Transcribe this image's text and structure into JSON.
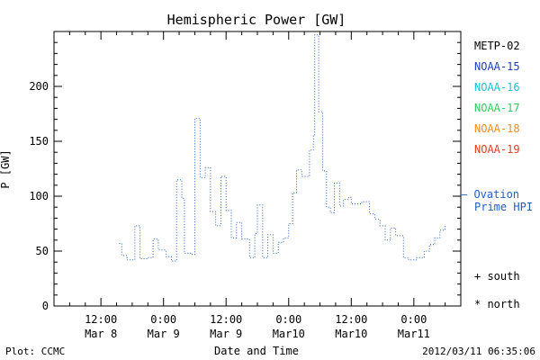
{
  "chart_data": {
    "type": "line",
    "title": "Hemispheric Power [GW]",
    "ylabel": "P [GW]",
    "xlabel": "Date and Time",
    "ylim": [
      0,
      250
    ],
    "xlim": [
      "2012-03-08 03:00",
      "2012-03-11 09:00"
    ],
    "grid": false,
    "y_ticks": [
      0,
      50,
      100,
      150,
      200
    ],
    "x_ticks": [
      {
        "at": "2012-03-08 12:00",
        "line1": "12:00",
        "line2": "Mar 8"
      },
      {
        "at": "2012-03-09 00:00",
        "line1": "0:00",
        "line2": "Mar 9"
      },
      {
        "at": "2012-03-09 12:00",
        "line1": "12:00",
        "line2": "Mar 9"
      },
      {
        "at": "2012-03-10 00:00",
        "line1": "0:00",
        "line2": "Mar10"
      },
      {
        "at": "2012-03-10 12:00",
        "line1": "12:00",
        "line2": "Mar10"
      },
      {
        "at": "2012-03-11 00:00",
        "line1": "0:00",
        "line2": "Mar11"
      }
    ],
    "series": [
      {
        "name": "Ovation Prime HPI",
        "color": "#1f5fbf",
        "style": "dotted-step",
        "points": [
          [
            "2012-03-08 15:30",
            57
          ],
          [
            "2012-03-08 16:00",
            46
          ],
          [
            "2012-03-08 17:00",
            42
          ],
          [
            "2012-03-08 18:30",
            73
          ],
          [
            "2012-03-08 19:30",
            43
          ],
          [
            "2012-03-08 21:00",
            44
          ],
          [
            "2012-03-08 22:00",
            61
          ],
          [
            "2012-03-08 23:00",
            51
          ],
          [
            "2012-03-09 00:30",
            45
          ],
          [
            "2012-03-09 01:30",
            41
          ],
          [
            "2012-03-09 02:30",
            115
          ],
          [
            "2012-03-09 03:30",
            98
          ],
          [
            "2012-03-09 04:00",
            48
          ],
          [
            "2012-03-09 05:30",
            47
          ],
          [
            "2012-03-09 06:00",
            171
          ],
          [
            "2012-03-09 07:00",
            117
          ],
          [
            "2012-03-09 08:00",
            126
          ],
          [
            "2012-03-09 09:00",
            86
          ],
          [
            "2012-03-09 10:00",
            73
          ],
          [
            "2012-03-09 11:00",
            118
          ],
          [
            "2012-03-09 12:00",
            87
          ],
          [
            "2012-03-09 13:00",
            62
          ],
          [
            "2012-03-09 14:00",
            76
          ],
          [
            "2012-03-09 15:00",
            61
          ],
          [
            "2012-03-09 16:30",
            44
          ],
          [
            "2012-03-09 17:30",
            66
          ],
          [
            "2012-03-09 18:00",
            92
          ],
          [
            "2012-03-09 19:00",
            44
          ],
          [
            "2012-03-09 20:00",
            65
          ],
          [
            "2012-03-09 21:00",
            48
          ],
          [
            "2012-03-09 22:00",
            58
          ],
          [
            "2012-03-09 23:00",
            62
          ],
          [
            "2012-03-10 00:00",
            75
          ],
          [
            "2012-03-10 00:45",
            103
          ],
          [
            "2012-03-10 01:30",
            124
          ],
          [
            "2012-03-10 02:30",
            118
          ],
          [
            "2012-03-10 04:00",
            142
          ],
          [
            "2012-03-10 04:45",
            155
          ],
          [
            "2012-03-10 05:00",
            247
          ],
          [
            "2012-03-10 05:45",
            177
          ],
          [
            "2012-03-10 06:30",
            123
          ],
          [
            "2012-03-10 07:15",
            90
          ],
          [
            "2012-03-10 08:00",
            85
          ],
          [
            "2012-03-10 08:45",
            112
          ],
          [
            "2012-03-10 09:45",
            91
          ],
          [
            "2012-03-10 10:30",
            97
          ],
          [
            "2012-03-10 11:30",
            99
          ],
          [
            "2012-03-10 12:00",
            93
          ],
          [
            "2012-03-10 14:00",
            95
          ],
          [
            "2012-03-10 15:30",
            84
          ],
          [
            "2012-03-10 16:30",
            79
          ],
          [
            "2012-03-10 17:30",
            73
          ],
          [
            "2012-03-10 18:30",
            60
          ],
          [
            "2012-03-10 19:30",
            71
          ],
          [
            "2012-03-10 20:30",
            64
          ],
          [
            "2012-03-10 22:00",
            44
          ],
          [
            "2012-03-10 23:00",
            42
          ],
          [
            "2012-03-11 00:30",
            44
          ],
          [
            "2012-03-11 02:00",
            50
          ],
          [
            "2012-03-11 03:00",
            56
          ],
          [
            "2012-03-11 04:00",
            62
          ],
          [
            "2012-03-11 05:00",
            69
          ],
          [
            "2012-03-11 06:00",
            73
          ]
        ]
      }
    ],
    "legend": {
      "satellites": [
        {
          "label": "METP-02",
          "color": "#000000"
        },
        {
          "label": "NOAA-15",
          "color": "#1f3fbf"
        },
        {
          "label": "NOAA-16",
          "color": "#1fbfd9"
        },
        {
          "label": "NOAA-17",
          "color": "#2fcf5f"
        },
        {
          "label": "NOAA-18",
          "color": "#ef8f1f"
        },
        {
          "label": "NOAA-19",
          "color": "#df3f1f"
        }
      ],
      "model_line1": "— Ovation",
      "model_line2": "Prime HPI",
      "model_color": "#1f5fbf",
      "south": "+ south",
      "north": "* north"
    },
    "plot_credit": "Plot: CCMC",
    "timestamp": "2012/03/11 06:35:06"
  }
}
